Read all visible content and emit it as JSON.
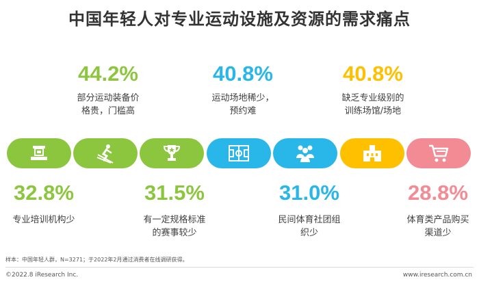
{
  "title": "中国年轻人对专业运动设施及资源的需求痛点",
  "chart_data": {
    "type": "bar",
    "categories": [
      "专业培训机构少",
      "部分运动装备价格贵，门槛高",
      "有一定规格标准的赛事较少",
      "运动场地稀少，预约难",
      "民间体育社团组织少",
      "缺乏专业级别的训练场馆/场地",
      "体育类产品购买渠道少"
    ],
    "values": [
      32.8,
      44.2,
      31.5,
      40.8,
      31.0,
      40.8,
      28.8
    ],
    "value_labels": [
      "32.8%",
      "44.2%",
      "31.5%",
      "40.8%",
      "31.0%",
      "40.8%",
      "28.8%"
    ],
    "description_lines": [
      [
        "专业培训机构少"
      ],
      [
        "部分运动装备价",
        "格贵，门槛高"
      ],
      [
        "有一定规格标准",
        "的赛事较少"
      ],
      [
        "运动场地稀少，",
        "预约难"
      ],
      [
        "民间体育社团组",
        "织少"
      ],
      [
        "缺乏专业级别的",
        "训练场馆/场地"
      ],
      [
        "体育类产品购买",
        "渠道少"
      ]
    ],
    "colors": [
      "#8cc63f",
      "#8cc63f",
      "#8cc63f",
      "#29b6e8",
      "#29b6e8",
      "#ffc000",
      "#f28b94"
    ],
    "icons": [
      "book-icon",
      "skier-icon",
      "trophy-icon",
      "court-icon",
      "group-icon",
      "stadium-icon",
      "cart-icon"
    ]
  },
  "source": "样本：中国年轻人群，N=3271；于2022年2月通过消费者在线调研获得。",
  "copyright": "©2022.8 iResearch Inc.",
  "website": "www.iresearch.com.cn"
}
